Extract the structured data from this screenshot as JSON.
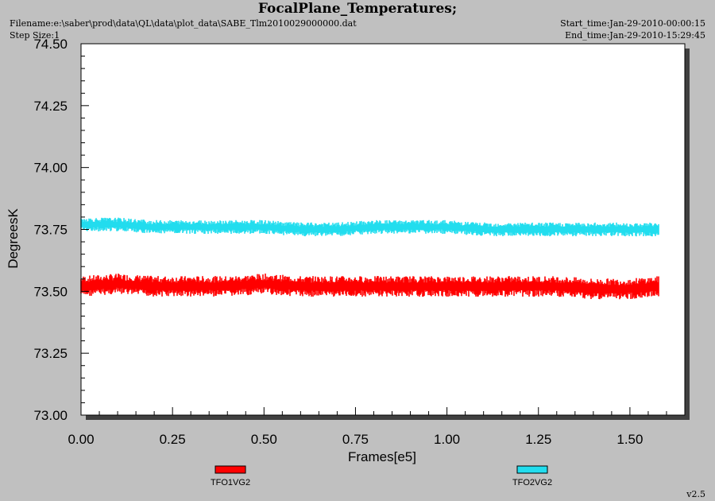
{
  "header": {
    "title": "FocalPlane_Temperatures;",
    "filename": "Filename:e:\\saber\\prod\\data\\QL\\data\\plot_data\\SABE_Tlm2010029000000.dat",
    "step_size": "Step Size:1",
    "start_time": "Start_time:Jan-29-2010-00:00:15",
    "end_time": "End_time:Jan-29-2010-15:29:45"
  },
  "footer": {
    "version": "v2.5"
  },
  "colors": {
    "plot_bg": "#ffffff",
    "page_bg": "#c0c0c0",
    "series1": "#ff0000",
    "series2": "#22ddee"
  },
  "chart_data": {
    "type": "line",
    "title": "FocalPlane_Temperatures;",
    "xlabel": "Frames[e5]",
    "ylabel": "DegreesK",
    "xlim": [
      0.0,
      1.65
    ],
    "ylim": [
      73.0,
      74.5
    ],
    "xticks": [
      "0.00",
      "0.25",
      "0.50",
      "0.75",
      "1.00",
      "1.25",
      "1.50"
    ],
    "yticks": [
      "73.00",
      "73.25",
      "73.50",
      "73.75",
      "74.00",
      "74.25",
      "74.50"
    ],
    "grid": false,
    "legend_position": "bottom",
    "series": [
      {
        "name": "TFO1VG2",
        "color": "#ff0000",
        "x_range": [
          0.0,
          1.58
        ],
        "mean": 73.52,
        "noise_min": 73.47,
        "noise_max": 73.59,
        "values": [
          {
            "x": 0.0,
            "y": 73.52
          },
          {
            "x": 0.1,
            "y": 73.53
          },
          {
            "x": 0.2,
            "y": 73.52
          },
          {
            "x": 0.3,
            "y": 73.52
          },
          {
            "x": 0.4,
            "y": 73.52
          },
          {
            "x": 0.5,
            "y": 73.53
          },
          {
            "x": 0.6,
            "y": 73.52
          },
          {
            "x": 0.7,
            "y": 73.52
          },
          {
            "x": 0.8,
            "y": 73.52
          },
          {
            "x": 0.9,
            "y": 73.52
          },
          {
            "x": 1.0,
            "y": 73.52
          },
          {
            "x": 1.1,
            "y": 73.52
          },
          {
            "x": 1.2,
            "y": 73.52
          },
          {
            "x": 1.3,
            "y": 73.52
          },
          {
            "x": 1.4,
            "y": 73.51
          },
          {
            "x": 1.5,
            "y": 73.51
          },
          {
            "x": 1.58,
            "y": 73.52
          }
        ]
      },
      {
        "name": "TFO2VG2",
        "color": "#22ddee",
        "x_range": [
          0.0,
          1.58
        ],
        "mean": 73.76,
        "noise_min": 73.72,
        "noise_max": 73.8,
        "values": [
          {
            "x": 0.0,
            "y": 73.77
          },
          {
            "x": 0.1,
            "y": 73.77
          },
          {
            "x": 0.2,
            "y": 73.76
          },
          {
            "x": 0.3,
            "y": 73.76
          },
          {
            "x": 0.4,
            "y": 73.76
          },
          {
            "x": 0.5,
            "y": 73.76
          },
          {
            "x": 0.6,
            "y": 73.75
          },
          {
            "x": 0.7,
            "y": 73.75
          },
          {
            "x": 0.8,
            "y": 73.76
          },
          {
            "x": 0.9,
            "y": 73.76
          },
          {
            "x": 1.0,
            "y": 73.76
          },
          {
            "x": 1.1,
            "y": 73.75
          },
          {
            "x": 1.2,
            "y": 73.75
          },
          {
            "x": 1.3,
            "y": 73.75
          },
          {
            "x": 1.4,
            "y": 73.75
          },
          {
            "x": 1.5,
            "y": 73.75
          },
          {
            "x": 1.58,
            "y": 73.75
          }
        ]
      }
    ]
  }
}
